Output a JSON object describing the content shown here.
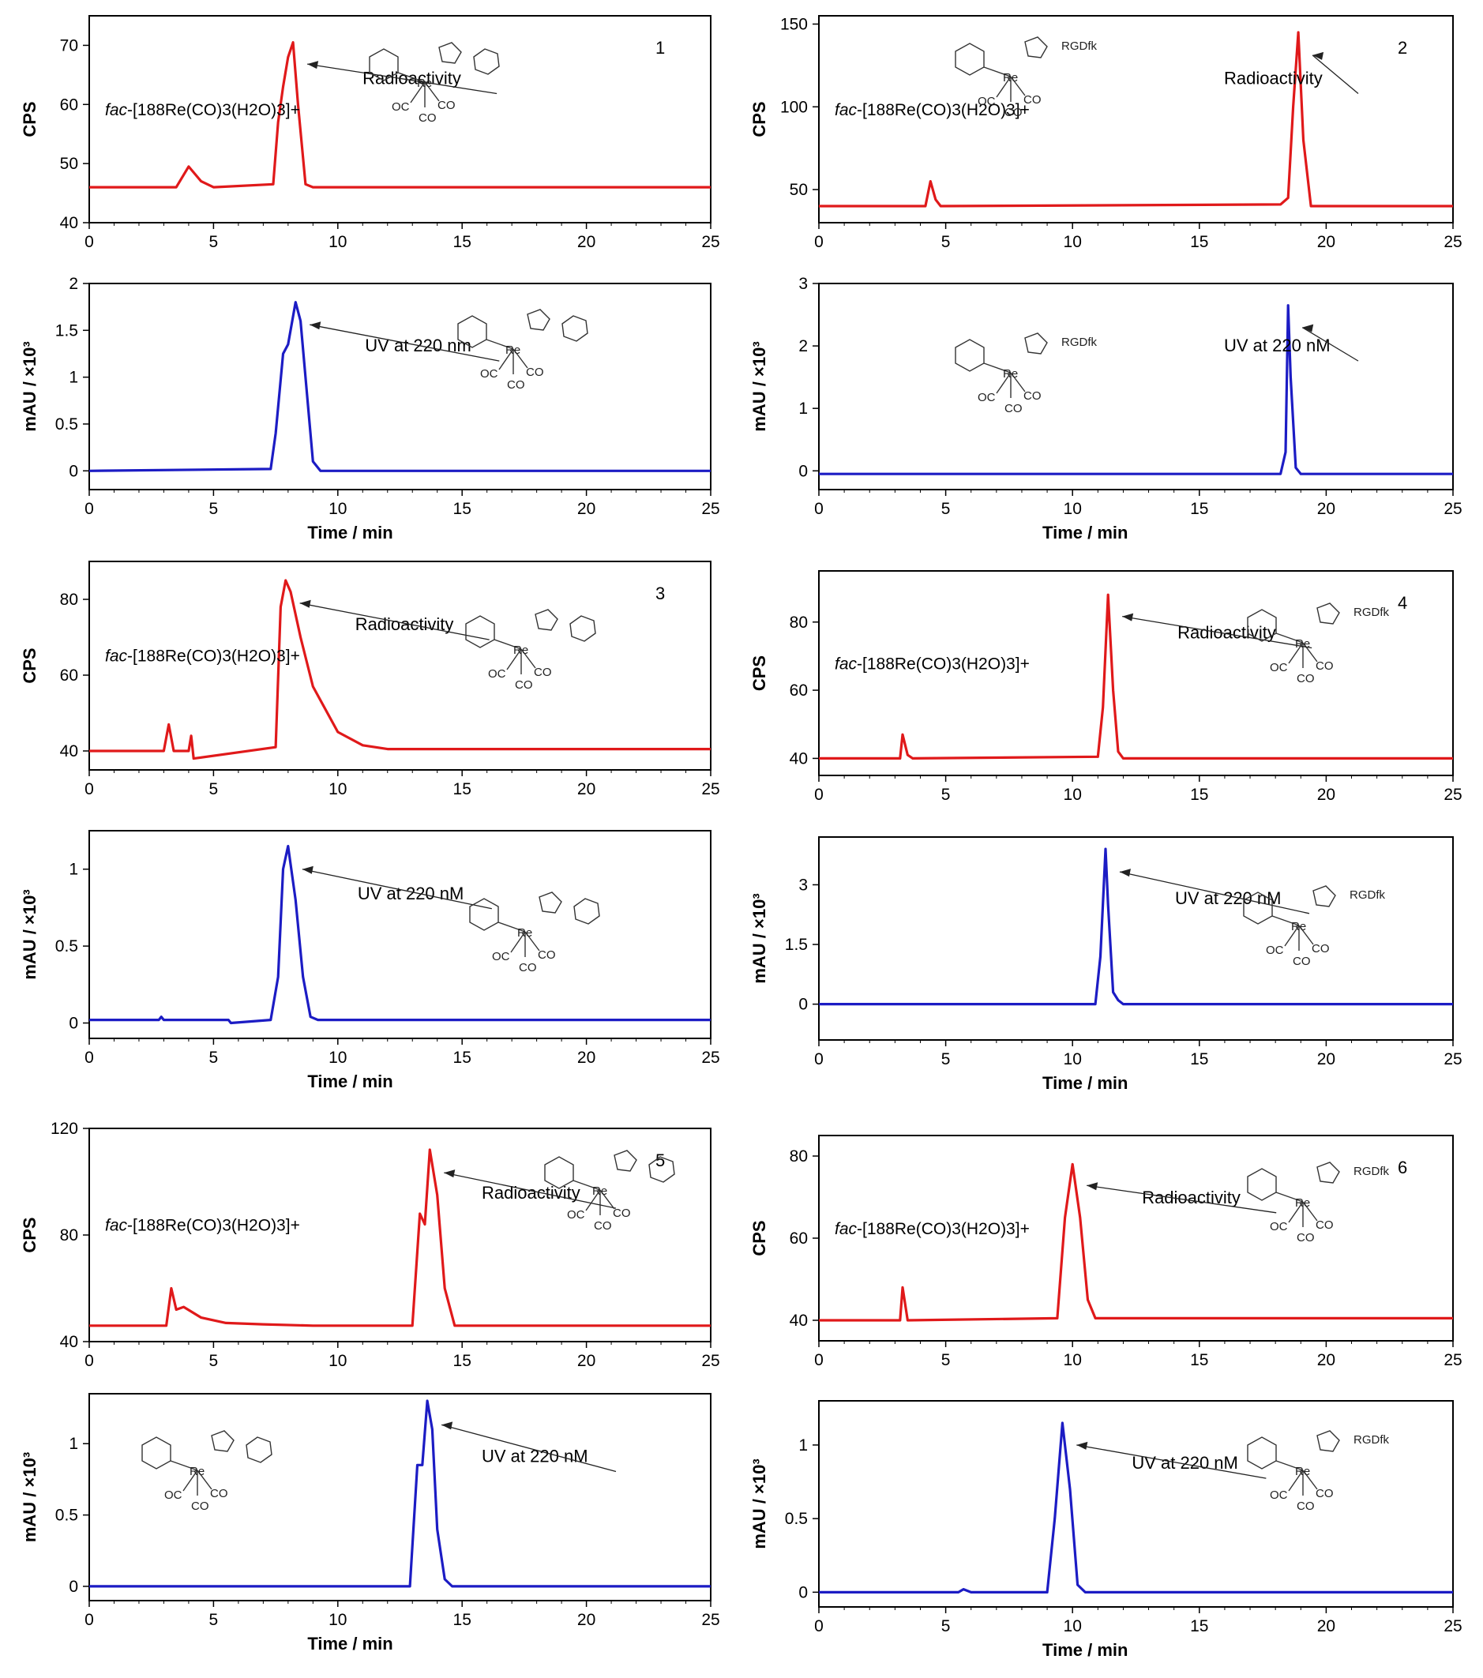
{
  "figure": {
    "xlabel": "Time / min",
    "time_ticks": [
      "0",
      "5",
      "10",
      "15",
      "20",
      "25"
    ],
    "rad_label": "Radioactivity",
    "fac_prefix": "fac",
    "fac_formula": "-[188Re(CO)3(H2O)3]+",
    "colors": {
      "radio": "#e0191a",
      "uv": "#1c1cc4",
      "axis": "#000000"
    },
    "structure_note": "rhenium tricarbonyl complex drawings (line art)"
  },
  "chart_data": [
    {
      "id": "1-radio",
      "type": "line",
      "panel_number": "1",
      "xlim": [
        0,
        25
      ],
      "ylim": [
        40,
        75
      ],
      "ylabel": "CPS",
      "yticks": [
        "40",
        "50",
        "60",
        "70"
      ],
      "annotation": "Radioactivity",
      "ligand_label": "",
      "series": [
        {
          "x": [
            0,
            3.5,
            4.0,
            4.5,
            5,
            7.4,
            7.6,
            7.8,
            8.0,
            8.2,
            8.4,
            8.7,
            9,
            25
          ],
          "y": [
            46,
            46,
            49.5,
            47,
            46,
            46.5,
            57,
            63,
            68,
            70.5,
            60,
            46.5,
            46,
            46
          ]
        }
      ]
    },
    {
      "id": "1-uv",
      "type": "line",
      "xlim": [
        0,
        25
      ],
      "ylim": [
        -0.2,
        2.0
      ],
      "ylabel": "mAU / ×10³",
      "yticks": [
        "0",
        "0.5",
        "1",
        "1.5",
        "2"
      ],
      "annotation": "UV at 220 nm",
      "ligand_label": "",
      "series": [
        {
          "x": [
            0,
            7.3,
            7.5,
            7.8,
            8.0,
            8.3,
            8.5,
            8.8,
            9.0,
            9.3,
            25
          ],
          "y": [
            0,
            0.02,
            0.4,
            1.25,
            1.35,
            1.8,
            1.6,
            0.7,
            0.1,
            0,
            0
          ]
        }
      ]
    },
    {
      "id": "2-radio",
      "type": "line",
      "panel_number": "2",
      "xlim": [
        0,
        25
      ],
      "ylim": [
        30,
        155
      ],
      "ylabel": "CPS",
      "yticks": [
        "50",
        "100",
        "150"
      ],
      "annotation": "Radioactivity",
      "ligand_label": "RGDfk",
      "series": [
        {
          "x": [
            0,
            4.2,
            4.4,
            4.6,
            4.8,
            18.2,
            18.5,
            18.7,
            18.9,
            19.1,
            19.4,
            25
          ],
          "y": [
            40,
            40,
            55,
            44,
            40,
            41,
            45,
            100,
            145,
            80,
            40,
            40
          ]
        }
      ]
    },
    {
      "id": "2-uv",
      "type": "line",
      "xlim": [
        0,
        25
      ],
      "ylim": [
        -0.3,
        3.0
      ],
      "ylabel": "mAU / ×10³",
      "yticks": [
        "0",
        "1",
        "2",
        "3"
      ],
      "annotation": "UV at 220 nM",
      "ligand_label": "RGDfk",
      "series": [
        {
          "x": [
            0,
            18.2,
            18.4,
            18.5,
            18.6,
            18.8,
            19.0,
            25
          ],
          "y": [
            -0.05,
            -0.05,
            0.3,
            2.65,
            1.5,
            0.05,
            -0.05,
            -0.05
          ]
        }
      ]
    },
    {
      "id": "3-radio",
      "type": "line",
      "panel_number": "3",
      "xlim": [
        0,
        25
      ],
      "ylim": [
        35,
        90
      ],
      "ylabel": "CPS",
      "yticks": [
        "40",
        "60",
        "80"
      ],
      "annotation": "Radioactivity",
      "ligand_label": "",
      "series": [
        {
          "x": [
            0,
            3.0,
            3.2,
            3.4,
            4.0,
            4.1,
            4.2,
            7.5,
            7.7,
            7.9,
            8.1,
            8.5,
            9,
            10,
            11,
            12,
            25
          ],
          "y": [
            40,
            40,
            47,
            40,
            40,
            44,
            38,
            41,
            78,
            85,
            82,
            70,
            57,
            45,
            41.5,
            40.5,
            40.5
          ]
        }
      ]
    },
    {
      "id": "3-uv",
      "type": "line",
      "xlim": [
        0,
        25
      ],
      "ylim": [
        -0.1,
        1.25
      ],
      "ylabel": "mAU / ×10³",
      "yticks": [
        "0",
        "0.5",
        "1"
      ],
      "annotation": "UV at 220 nM",
      "ligand_label": "",
      "series": [
        {
          "x": [
            0,
            2.8,
            2.9,
            3.0,
            5.6,
            5.7,
            7.3,
            7.6,
            7.8,
            8.0,
            8.3,
            8.6,
            8.9,
            9.2,
            25
          ],
          "y": [
            0.02,
            0.02,
            0.04,
            0.02,
            0.02,
            0.0,
            0.02,
            0.3,
            1.0,
            1.15,
            0.8,
            0.3,
            0.04,
            0.02,
            0.02
          ]
        }
      ]
    },
    {
      "id": "4-radio",
      "type": "line",
      "panel_number": "4",
      "xlim": [
        0,
        25
      ],
      "ylim": [
        35,
        95
      ],
      "ylabel": "CPS",
      "yticks": [
        "40",
        "60",
        "80"
      ],
      "annotation": "Radioactivity",
      "ligand_label": "RGDfk",
      "series": [
        {
          "x": [
            0,
            3.2,
            3.3,
            3.5,
            3.7,
            11.0,
            11.2,
            11.4,
            11.6,
            11.8,
            12.0,
            25
          ],
          "y": [
            40,
            40,
            47,
            41,
            40,
            40.5,
            55,
            88,
            60,
            42,
            40,
            40
          ]
        }
      ]
    },
    {
      "id": "4-uv",
      "type": "line",
      "xlim": [
        0,
        25
      ],
      "ylim": [
        -0.9,
        4.2
      ],
      "ylabel": "mAU / ×10³",
      "yticks": [
        "0",
        "1.5",
        "3"
      ],
      "annotation": "UV at 220 nM",
      "ligand_label": "RGDfk",
      "series": [
        {
          "x": [
            0,
            10.9,
            11.1,
            11.3,
            11.4,
            11.6,
            11.8,
            12.0,
            25
          ],
          "y": [
            0,
            0,
            1.2,
            3.9,
            2.5,
            0.3,
            0.1,
            0,
            0
          ]
        }
      ]
    },
    {
      "id": "5-radio",
      "type": "line",
      "panel_number": "5",
      "xlim": [
        0,
        25
      ],
      "ylim": [
        40,
        120
      ],
      "ylabel": "CPS",
      "yticks": [
        "40",
        "80",
        "120"
      ],
      "annotation": "Radioactivity",
      "ligand_label": "",
      "series": [
        {
          "x": [
            0,
            3.1,
            3.3,
            3.5,
            3.8,
            4.5,
            5.5,
            7,
            9,
            13.0,
            13.3,
            13.5,
            13.7,
            14.0,
            14.3,
            14.7,
            25
          ],
          "y": [
            46,
            46,
            60,
            52,
            53,
            49,
            47,
            46.5,
            46,
            46,
            88,
            84,
            112,
            95,
            60,
            46,
            46
          ]
        }
      ]
    },
    {
      "id": "5-uv",
      "type": "line",
      "xlim": [
        0,
        25
      ],
      "ylim": [
        -0.1,
        1.35
      ],
      "ylabel": "mAU / ×10³",
      "yticks": [
        "0",
        "0.5",
        "1"
      ],
      "annotation": "UV at 220 nM",
      "ligand_label": "",
      "series": [
        {
          "x": [
            0,
            12.9,
            13.2,
            13.4,
            13.6,
            13.8,
            14.0,
            14.3,
            14.6,
            25
          ],
          "y": [
            0,
            0,
            0.85,
            0.85,
            1.3,
            1.1,
            0.4,
            0.05,
            0,
            0
          ]
        }
      ]
    },
    {
      "id": "6-radio",
      "type": "line",
      "panel_number": "6",
      "xlim": [
        0,
        25
      ],
      "ylim": [
        35,
        85
      ],
      "ylabel": "CPS",
      "yticks": [
        "40",
        "60",
        "80"
      ],
      "annotation": "Radioactivity",
      "ligand_label": "RGDfk",
      "series": [
        {
          "x": [
            0,
            3.2,
            3.3,
            3.5,
            9.4,
            9.7,
            10.0,
            10.3,
            10.6,
            10.9,
            25
          ],
          "y": [
            40,
            40,
            48,
            40,
            40.5,
            65,
            78,
            65,
            45,
            40.5,
            40.5
          ]
        }
      ]
    },
    {
      "id": "6-uv",
      "type": "line",
      "xlim": [
        0,
        25
      ],
      "ylim": [
        -0.1,
        1.3
      ],
      "ylabel": "mAU / ×10³",
      "yticks": [
        "0",
        "0.5",
        "1"
      ],
      "annotation": "UV at 220 nM",
      "ligand_label": "RGDfk",
      "series": [
        {
          "x": [
            0,
            5.5,
            5.7,
            6.0,
            9.0,
            9.3,
            9.6,
            9.9,
            10.2,
            10.5,
            25
          ],
          "y": [
            0,
            0,
            0.02,
            0,
            0,
            0.5,
            1.15,
            0.7,
            0.05,
            0,
            0
          ]
        }
      ]
    }
  ]
}
